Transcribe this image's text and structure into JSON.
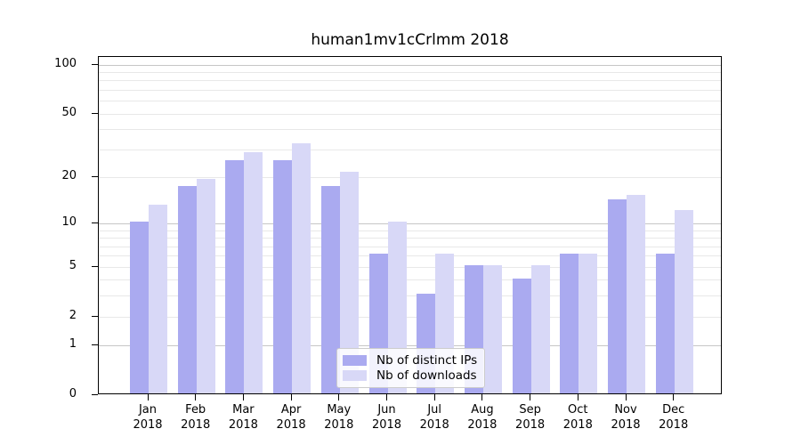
{
  "figure": {
    "background": "#ffffff"
  },
  "chart_data": {
    "type": "bar",
    "title": "human1mv1cCrlmm 2018",
    "categories": [
      "Jan",
      "Feb",
      "Mar",
      "Apr",
      "May",
      "Jun",
      "Jul",
      "Aug",
      "Sep",
      "Oct",
      "Nov",
      "Dec"
    ],
    "year": "2018",
    "series": [
      {
        "name": "Nb of distinct IPs",
        "color": "#aaaaf0",
        "values": [
          10,
          17,
          25,
          25,
          17,
          6,
          3,
          5,
          4,
          6,
          14,
          6
        ]
      },
      {
        "name": "Nb of downloads",
        "color": "#d8d8f7",
        "values": [
          13,
          19,
          28,
          32,
          21,
          10,
          6,
          5,
          5,
          6,
          15,
          12
        ]
      }
    ],
    "y_scale": "log10(1+x)",
    "ylim": [
      0,
      100
    ],
    "y_ticks": [
      0,
      1,
      2,
      5,
      10,
      20,
      50,
      100
    ],
    "y_gridlines_major": [
      1,
      10,
      100
    ],
    "y_gridlines_minor": [
      2,
      3,
      4,
      5,
      6,
      7,
      8,
      9,
      20,
      30,
      40,
      50,
      60,
      70,
      80,
      90
    ],
    "grid": "horizontal",
    "legend_position": "lower center",
    "colors": {
      "major_grid": "#c6c6c6",
      "minor_grid": "#e8e8e8",
      "spine": "#000000",
      "background": "#ffffff"
    }
  }
}
